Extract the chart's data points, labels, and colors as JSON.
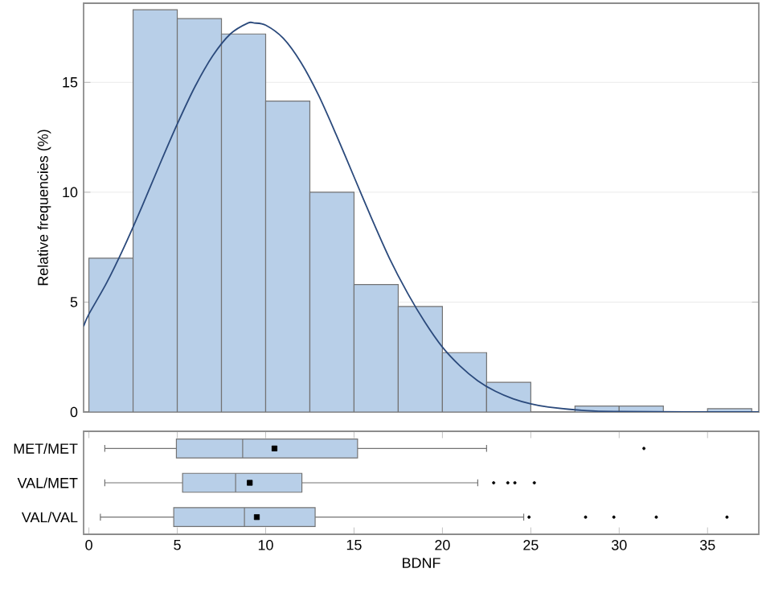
{
  "chart_data": [
    {
      "type": "histogram",
      "ylabel": "Relative frequencies (%)",
      "bins": [
        0,
        2.5,
        5,
        7.5,
        10,
        12.5,
        15,
        17.5,
        20,
        22.5,
        25,
        27.5,
        30,
        32.5,
        35,
        37.5
      ],
      "series": [
        {
          "type": "histogram",
          "color": "#b8cfe8",
          "values": [
            7.0,
            18.3,
            17.9,
            17.2,
            14.15,
            10.0,
            5.8,
            4.8,
            2.7,
            1.35,
            null,
            0.27,
            0.27,
            0,
            0.15
          ]
        },
        {
          "type": "line",
          "color": "#2b4a7c",
          "x": [
            -0.3,
            0,
            1,
            2,
            3,
            4,
            5,
            6,
            7,
            8,
            9,
            9.36,
            10,
            11,
            12,
            13,
            14,
            15,
            16,
            17,
            18,
            19,
            20,
            21,
            22,
            23,
            24,
            25,
            26,
            28,
            30,
            37.9
          ],
          "values": [
            3.9,
            4.45,
            5.87,
            7.52,
            9.34,
            11.25,
            13.1,
            14.8,
            16.2,
            17.2,
            17.7,
            17.7,
            17.6,
            17.0,
            15.9,
            14.4,
            12.6,
            10.7,
            8.8,
            7.0,
            5.45,
            4.1,
            2.95,
            2.09,
            1.42,
            0.94,
            0.6,
            0.37,
            0.22,
            0.07,
            0.02,
            0
          ]
        }
      ],
      "xlim": [
        -0.3,
        37.9
      ],
      "ylim": [
        0,
        18.6
      ],
      "yticks": [
        0,
        5,
        10,
        15
      ],
      "grid": "y",
      "tick_labels": "y"
    },
    {
      "type": "box",
      "orientation": "horizontal",
      "xlabel": "BDNF",
      "categories": [
        "MET/MET",
        "VAL/MET",
        "VAL/VAL"
      ],
      "color": "#b8cfe8",
      "boxes": [
        {
          "low": 0.9,
          "q1": 4.95,
          "median": 8.7,
          "q3": 15.2,
          "high": 22.5,
          "mean": 10.5,
          "outliers": [
            31.4
          ]
        },
        {
          "low": 0.9,
          "q1": 5.3,
          "median": 8.3,
          "q3": 12.05,
          "high": 22.0,
          "mean": 9.1,
          "outliers": [
            22.9,
            23.7,
            24.1,
            25.2
          ]
        },
        {
          "low": 0.65,
          "q1": 4.8,
          "median": 8.8,
          "q3": 12.8,
          "high": 24.6,
          "mean": 9.5,
          "outliers": [
            24.9,
            28.1,
            29.7,
            32.1,
            36.1
          ]
        }
      ],
      "xlim": [
        -0.3,
        37.9
      ],
      "xticks": [
        0,
        5,
        10,
        15,
        20,
        25,
        30,
        35
      ]
    }
  ]
}
